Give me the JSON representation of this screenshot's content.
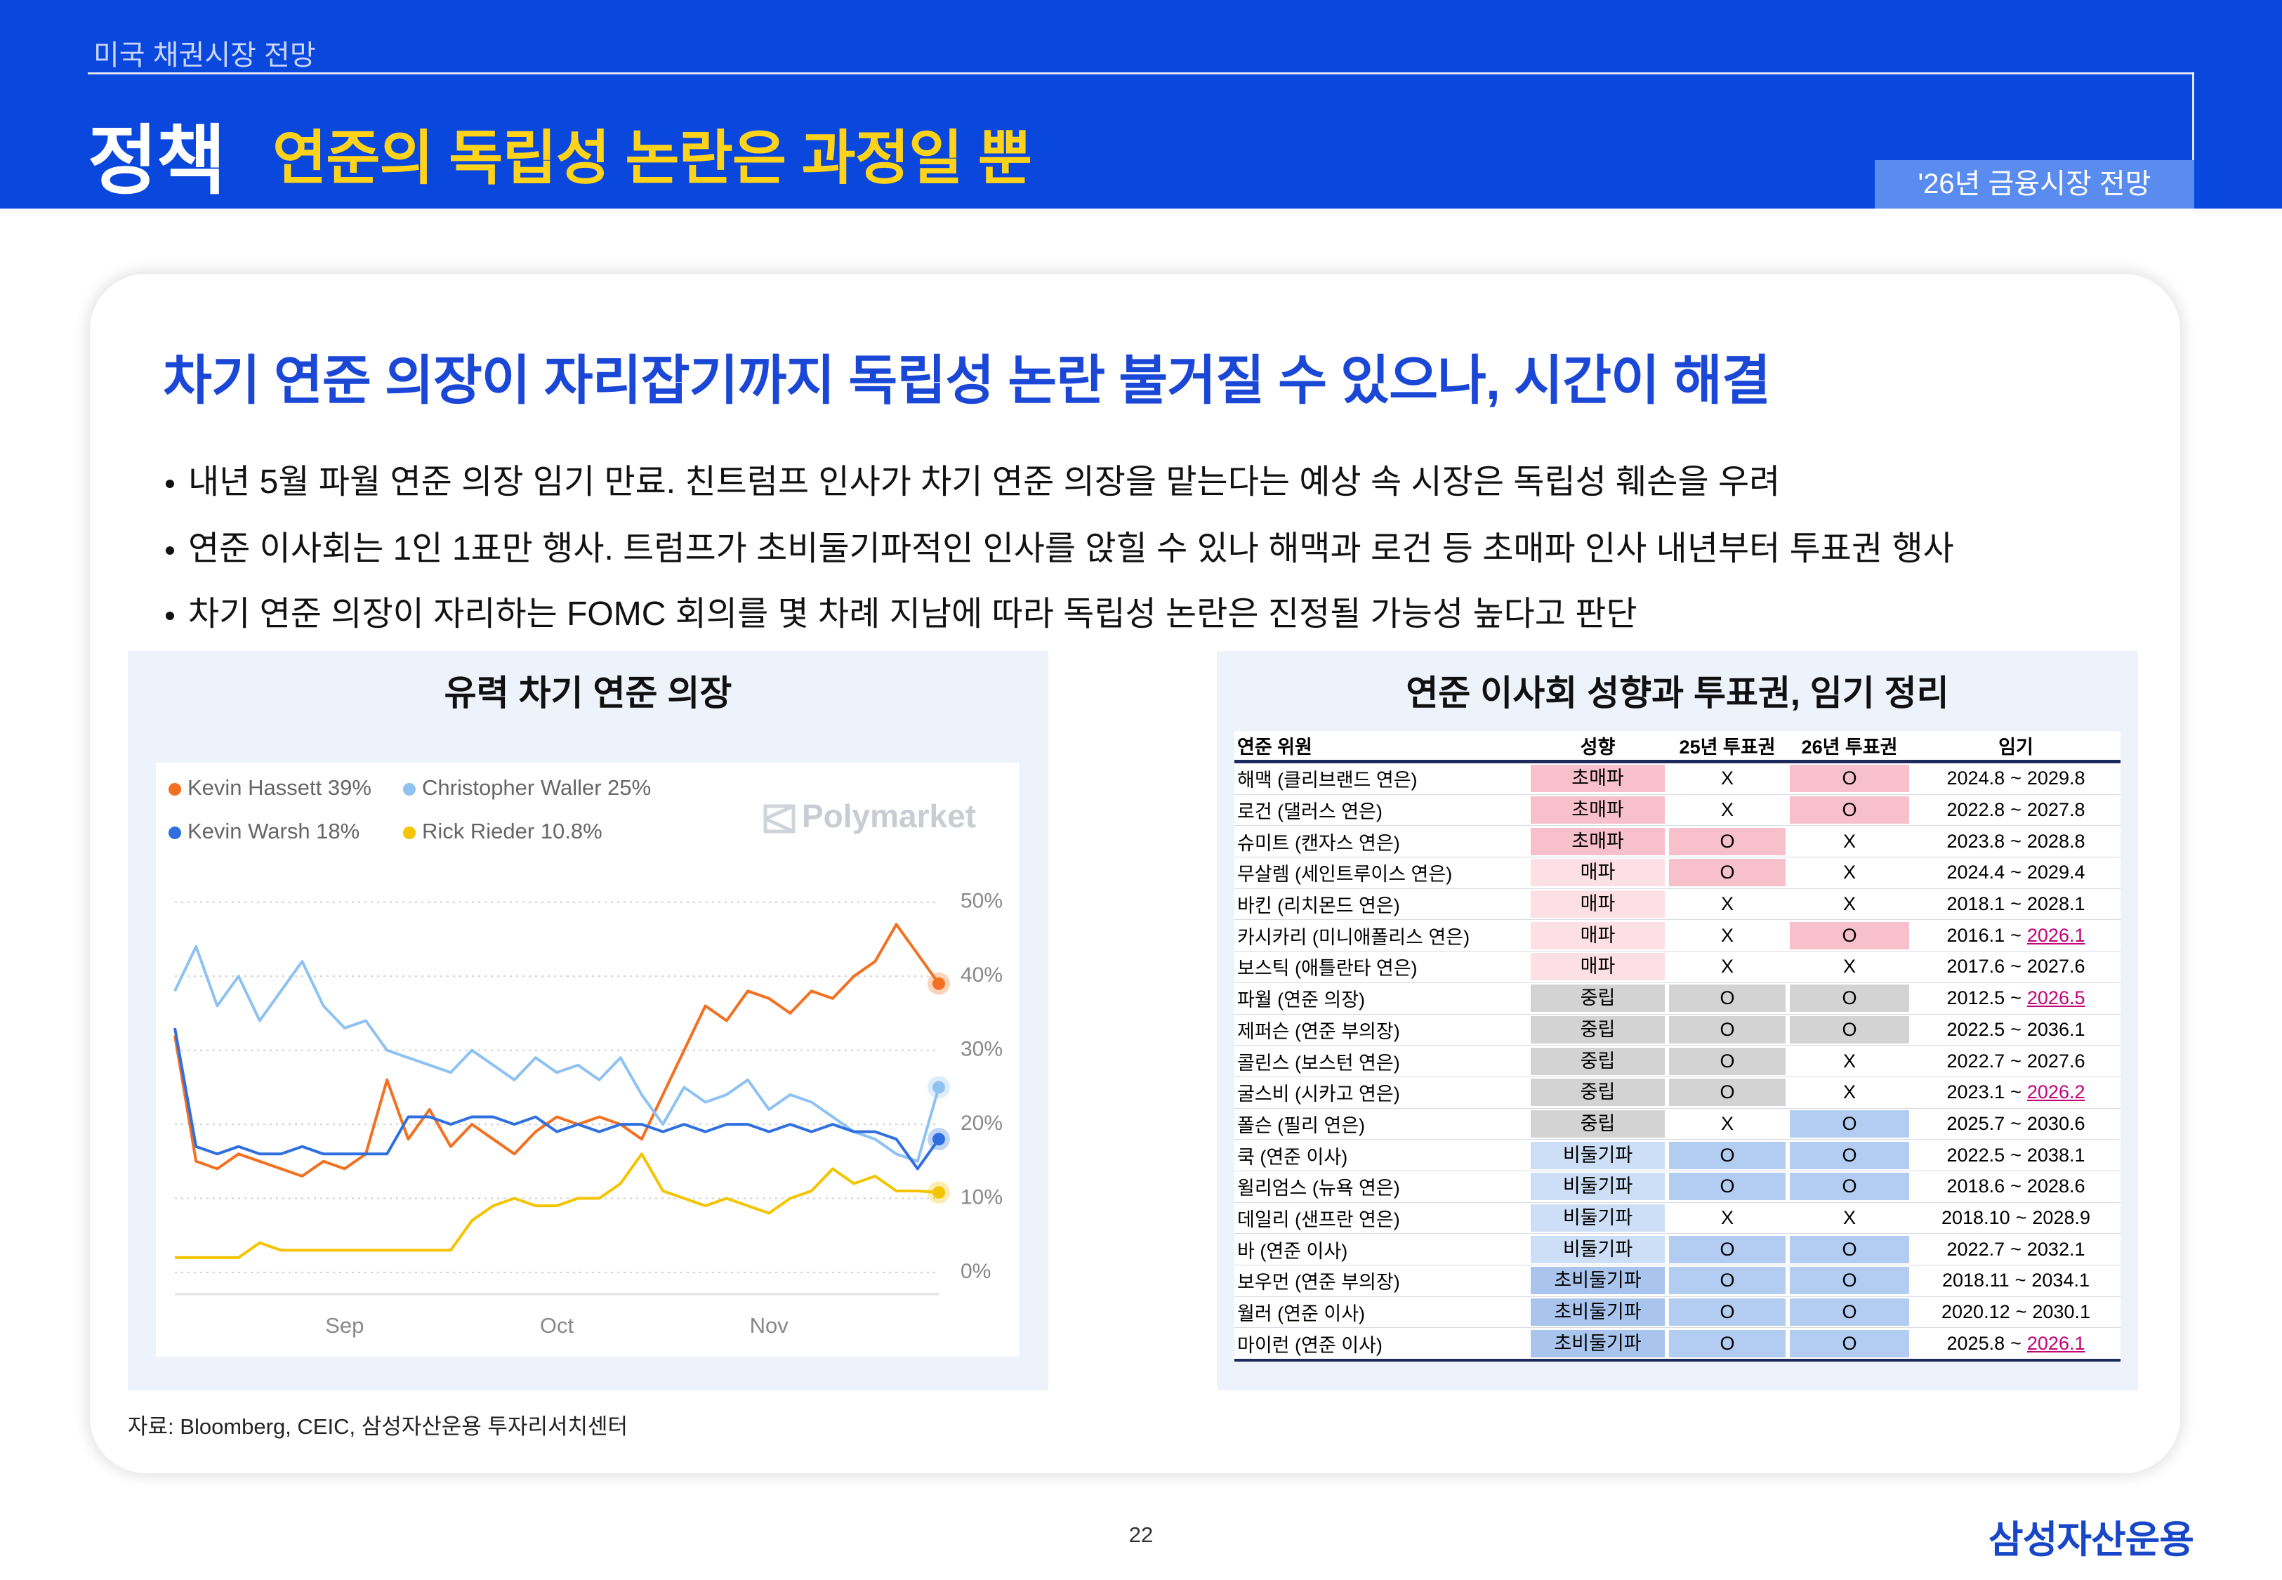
{
  "header": {
    "section": "미국 채권시장 전망",
    "title_main": "정책",
    "title_sub": "연준의 독립성 논란은 과정일 뿐",
    "badge": "'26년 금융시장 전망"
  },
  "headline": "차기 연준 의장이 자리잡기까지 독립성 논란 불거질 수 있으나, 시간이 해결",
  "bullets": [
    "내년 5월 파월 연준 의장 임기 만료. 친트럼프 인사가 차기 연준 의장을 맡는다는 예상 속 시장은 독립성 훼손을 우려",
    "연준 이사회는 1인 1표만 행사. 트럼프가 초비둘기파적인 인사를 앉힐 수 있나 해맥과 로건 등 초매파 인사 내년부터 투표권 행사",
    "차기 연준 의장이 자리하는 FOMC 회의를 몇 차례 지남에 따라 독립성 논란은 진정될 가능성 높다고 판단"
  ],
  "chart_panel": {
    "title": "유력 차기 연준 의장",
    "watermark": "Polymarket"
  },
  "chart_data": {
    "type": "line",
    "legend": "top-left",
    "grid": true,
    "categories": [
      null,
      null,
      null,
      null,
      null,
      null,
      null,
      null,
      "Sep",
      null,
      null,
      null,
      null,
      null,
      null,
      null,
      null,
      null,
      "Oct",
      null,
      null,
      null,
      null,
      null,
      null,
      null,
      null,
      null,
      "Nov",
      null,
      null,
      null,
      null,
      null,
      null,
      null,
      null
    ],
    "ylim": [
      0,
      55
    ],
    "yticks": [
      {
        "value": 0,
        "label": "0%"
      },
      {
        "value": 10,
        "label": "10%"
      },
      {
        "value": 20,
        "label": "20%"
      },
      {
        "value": 30,
        "label": "30%"
      },
      {
        "value": 40,
        "label": "40%"
      },
      {
        "value": 50,
        "label": "50%"
      }
    ],
    "series": [
      {
        "name": "Kevin Hassett 39%",
        "color": "#f37021",
        "values": [
          32,
          15,
          14,
          16,
          15,
          14,
          13,
          15,
          14,
          16,
          26,
          18,
          22,
          17,
          20,
          18,
          16,
          19,
          21,
          20,
          21,
          20,
          18,
          24,
          30,
          36,
          34,
          38,
          37,
          35,
          38,
          37,
          40,
          42,
          47,
          43,
          39
        ]
      },
      {
        "name": "Christopher Waller 25%",
        "color": "#8ec2f2",
        "values": [
          38,
          44,
          36,
          40,
          34,
          38,
          42,
          36,
          33,
          34,
          30,
          29,
          28,
          27,
          30,
          28,
          26,
          29,
          27,
          28,
          26,
          29,
          24,
          20,
          25,
          23,
          24,
          26,
          22,
          24,
          23,
          21,
          19,
          18,
          16,
          15,
          25
        ]
      },
      {
        "name": "Kevin Warsh 18%",
        "color": "#2f6fe0",
        "values": [
          33,
          17,
          16,
          17,
          16,
          16,
          17,
          16,
          16,
          16,
          16,
          21,
          21,
          20,
          21,
          21,
          20,
          21,
          19,
          20,
          19,
          20,
          20,
          19,
          20,
          19,
          20,
          20,
          19,
          20,
          19,
          20,
          19,
          19,
          18,
          14,
          18
        ]
      },
      {
        "name": "Rick Rieder 10.8%",
        "color": "#f5c400",
        "values": [
          2,
          2,
          2,
          2,
          4,
          3,
          3,
          3,
          3,
          3,
          3,
          3,
          3,
          3,
          7,
          9,
          10,
          9,
          9,
          10,
          10,
          12,
          16,
          11,
          10,
          9,
          10,
          9,
          8,
          10,
          11,
          14,
          12,
          13,
          11,
          11,
          10.8
        ]
      }
    ]
  },
  "table_panel": {
    "title": "연준 이사회 성향과 투표권, 임기 정리",
    "table": {
      "header": [
        "연준 위원",
        "성향",
        "25년 투표권",
        "26년 투표권",
        "임기"
      ],
      "rows": [
        [
          "해맥 (클리브랜드 연은)",
          "초매파",
          "X",
          "O"
        ],
        [
          "로건 (댈러스 연은)",
          "초매파",
          "X",
          "O"
        ],
        [
          "슈미트 (캔자스 연은)",
          "초매파",
          "O",
          "X"
        ],
        [
          "무살렘 (세인트루이스 연은)",
          "매파",
          "O",
          "X"
        ],
        [
          "바킨 (리치몬드 연은)",
          "매파",
          "X",
          "X"
        ],
        [
          "카시카리 (미니애폴리스 연은)",
          "매파",
          "X",
          "O"
        ],
        [
          "보스틱 (애틀란타 연은)",
          "매파",
          "X",
          "X"
        ],
        [
          "파월 (연준 의장)",
          "중립",
          "O",
          "O"
        ],
        [
          "제퍼슨 (연준 부의장)",
          "중립",
          "O",
          "O"
        ],
        [
          "콜린스 (보스턴 연은)",
          "중립",
          "O",
          "X"
        ],
        [
          "굴스비 (시카고 연은)",
          "중립",
          "O",
          "X"
        ],
        [
          "폴슨 (필리 연은)",
          "중립",
          "X",
          "O"
        ],
        [
          "쿡 (연준 이사)",
          "비둘기파",
          "O",
          "O"
        ],
        [
          "윌리엄스 (뉴욕 연은)",
          "비둘기파",
          "O",
          "O"
        ],
        [
          "데일리 (샌프란 연은)",
          "비둘기파",
          "X",
          "X"
        ],
        [
          "바 (연준 이사)",
          "비둘기파",
          "O",
          "O"
        ],
        [
          "보우먼 (연준 부의장)",
          "초비둘기파",
          "O",
          "O"
        ],
        [
          "월러 (연준 이사)",
          "초비둘기파",
          "O",
          "O"
        ],
        [
          "마이런 (연준 이사)",
          "초비둘기파",
          "O",
          "O"
        ]
      ],
      "terms": [
        [
          "2024.8",
          "2029.8"
        ],
        [
          "2022.8",
          "2027.8"
        ],
        [
          "2023.8",
          "2028.8"
        ],
        [
          "2024.4",
          "2029.4"
        ],
        [
          "2018.1",
          "2028.1"
        ],
        [
          "2016.1",
          "2026.1"
        ],
        [
          "2017.6",
          "2027.6"
        ],
        [
          "2012.5",
          "2026.5"
        ],
        [
          "2022.5",
          "2036.1"
        ],
        [
          "2022.7",
          "2027.6"
        ],
        [
          "2023.1",
          "2026.2"
        ],
        [
          "2025.7",
          "2030.6"
        ],
        [
          "2022.5",
          "2038.1"
        ],
        [
          "2018.6",
          "2028.6"
        ],
        [
          "2018.10",
          "2028.9"
        ],
        [
          "2022.7",
          "2032.1"
        ],
        [
          "2018.11",
          "2034.1"
        ],
        [
          "2020.12",
          "2030.1"
        ],
        [
          "2025.8",
          "2026.1"
        ]
      ],
      "term_separator": "~",
      "term_end_highlight": [
        false,
        false,
        false,
        false,
        false,
        true,
        false,
        true,
        false,
        false,
        true,
        false,
        false,
        false,
        false,
        false,
        false,
        false,
        true
      ],
      "stance_colors": [
        "#f8c0ca",
        "#f8c0ca",
        "#f8c0ca",
        "#fde0e6",
        "#fde0e6",
        "#fde0e6",
        "#fde0e6",
        "#d3d3d3",
        "#d3d3d3",
        "#d3d3d3",
        "#d3d3d3",
        "#d3d3d3",
        "#cddff6",
        "#cddff6",
        "#cddff6",
        "#cddff6",
        "#a9c5ee",
        "#a9c5ee",
        "#a9c5ee"
      ],
      "vote_colors": [
        "#f8c0ca",
        "#f8c0ca",
        "#f8c0ca",
        "#f8c0ca",
        "#f8c0ca",
        "#f8c0ca",
        "#f8c0ca",
        "#d3d3d3",
        "#d3d3d3",
        "#d3d3d3",
        "#d3d3d3",
        "#b3cdf2",
        "#b3cdf2",
        "#b3cdf2",
        "#b3cdf2",
        "#b3cdf2",
        "#b3cdf2",
        "#b3cdf2",
        "#b3cdf2"
      ],
      "vote_highlight": [
        [
          false,
          true
        ],
        [
          false,
          true
        ],
        [
          true,
          false
        ],
        [
          true,
          false
        ],
        [
          false,
          false
        ],
        [
          false,
          true
        ],
        [
          false,
          false
        ],
        [
          true,
          true
        ],
        [
          true,
          true
        ],
        [
          true,
          false
        ],
        [
          true,
          false
        ],
        [
          false,
          true
        ],
        [
          true,
          true
        ],
        [
          true,
          true
        ],
        [
          false,
          false
        ],
        [
          true,
          true
        ],
        [
          true,
          true
        ],
        [
          true,
          true
        ],
        [
          true,
          true
        ]
      ]
    }
  },
  "source": "자료: Bloomberg, CEIC, 삼성자산운용 투자리서치센터",
  "page_number": "22",
  "footer_logo": "삼성자산운용"
}
